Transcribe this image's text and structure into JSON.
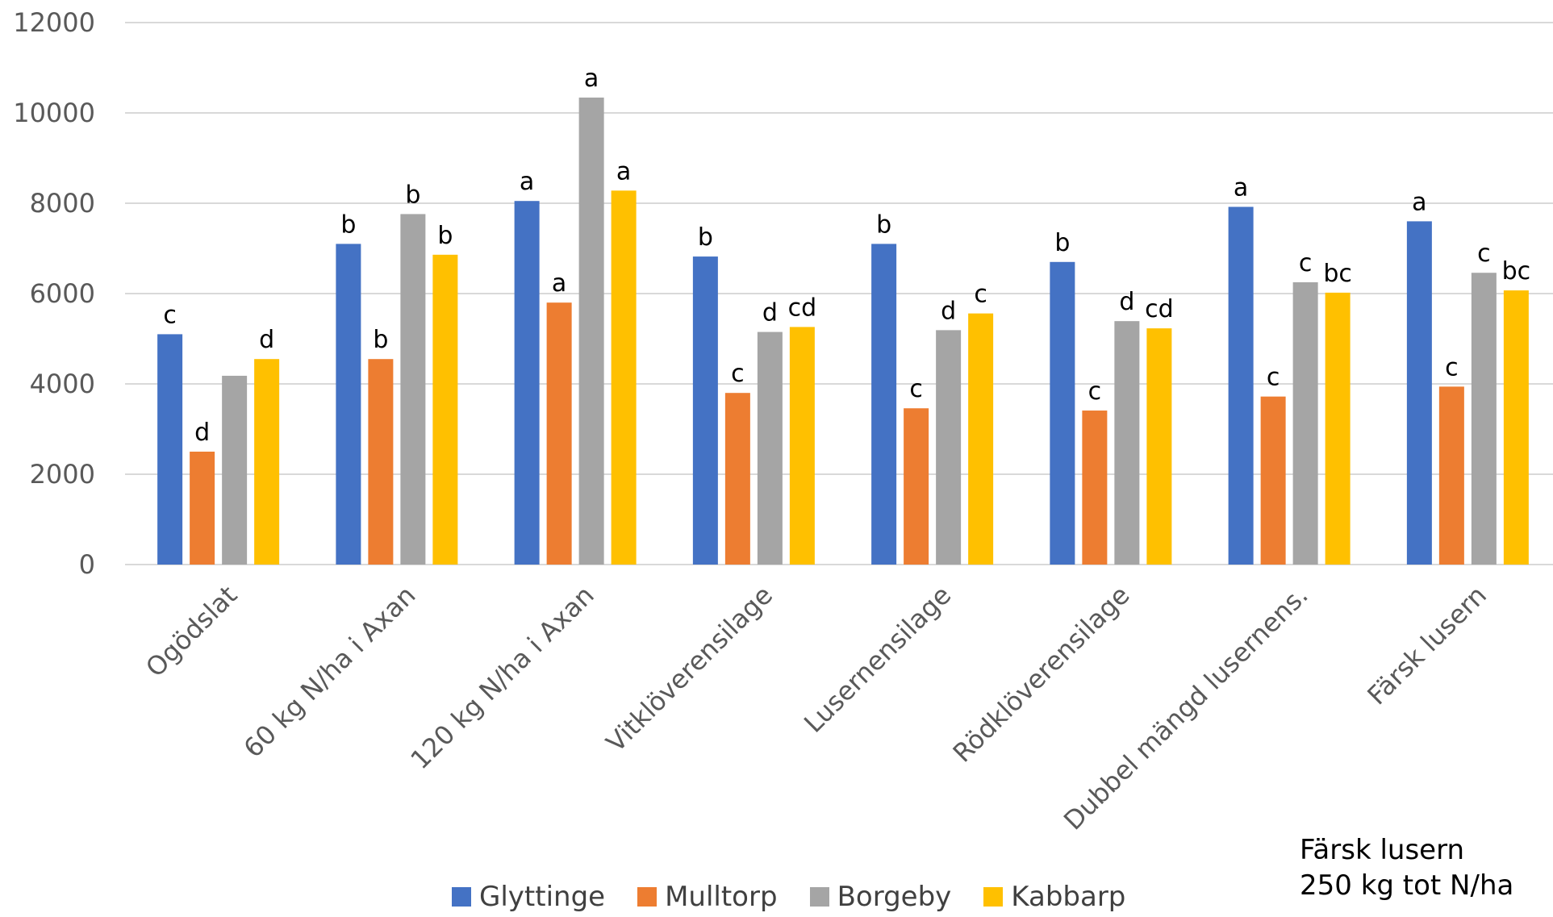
{
  "chart_data": {
    "type": "bar",
    "categories": [
      "Ogödslat",
      "60 kg N/ha i Axan",
      "120 kg N/ha i Axan",
      "Vitklöverensilage",
      "Lusernensilage",
      "Rödklöverensilage",
      "Dubbel mängd lusernens.",
      "Färsk lusern"
    ],
    "series": [
      {
        "name": "Glyttinge",
        "color": "#4472C4",
        "values": [
          5100,
          7100,
          8050,
          6820,
          7100,
          6700,
          7920,
          7600
        ],
        "labels": [
          "c",
          "b",
          "a",
          "b",
          "b",
          "b",
          "a",
          "a"
        ]
      },
      {
        "name": "Mulltorp",
        "color": "#ED7D31",
        "values": [
          2500,
          4550,
          5800,
          3800,
          3460,
          3410,
          3720,
          3940
        ],
        "labels": [
          "d",
          "b",
          "a",
          "c",
          "c",
          "c",
          "c",
          "c"
        ]
      },
      {
        "name": "Borgeby",
        "color": "#A5A5A5",
        "values": [
          4180,
          7760,
          10340,
          5150,
          5190,
          5390,
          6250,
          6460
        ],
        "labels": [
          "",
          "b",
          "a",
          "d",
          "d",
          "d",
          "c",
          "c"
        ]
      },
      {
        "name": "Kabbarp",
        "color": "#FFC000",
        "values": [
          4550,
          6860,
          8280,
          5260,
          5560,
          5230,
          6020,
          6070
        ],
        "labels": [
          "d",
          "b",
          "a",
          "cd",
          "c",
          "cd",
          "bc",
          "bc"
        ]
      }
    ],
    "ylim": [
      0,
      12000
    ],
    "yticks": [
      "0",
      "2000",
      "4000",
      "6000",
      "8000",
      "10000",
      "12000"
    ],
    "grid": true,
    "legend_position": "bottom",
    "annotation": [
      "Färsk lusern",
      "250 kg tot N/ha"
    ]
  }
}
